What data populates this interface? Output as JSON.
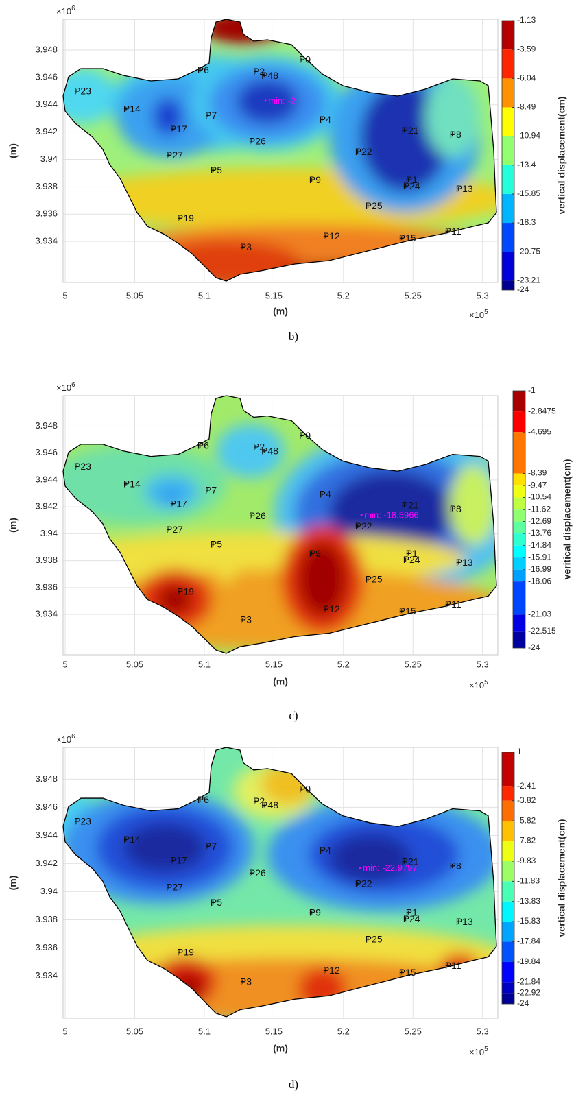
{
  "chart_data": [
    {
      "type": "contour",
      "caption": "b)",
      "xlabel": "(m)",
      "ylabel": "(m)",
      "x_exponent_text": {
        "base": "×10",
        "power": "5"
      },
      "y_exponent_text": {
        "base": "×10",
        "power": "6"
      },
      "xlim": [
        499850,
        531100
      ],
      "xticks": [
        {
          "value": 500000,
          "label": "5"
        },
        {
          "value": 505000,
          "label": "5.05"
        },
        {
          "value": 510000,
          "label": "5.1"
        },
        {
          "value": 515000,
          "label": "5.15"
        },
        {
          "value": 520000,
          "label": "5.2"
        },
        {
          "value": 525000,
          "label": "5.25"
        },
        {
          "value": 530000,
          "label": "5.3"
        }
      ],
      "ylim": [
        3931000,
        3950260
      ],
      "yticks": [
        {
          "value": 3934000,
          "label": "3.934"
        },
        {
          "value": 3936000,
          "label": "3.936"
        },
        {
          "value": 3938000,
          "label": "3.938"
        },
        {
          "value": 3940000,
          "label": "3.94"
        },
        {
          "value": 3942000,
          "label": "3.942"
        },
        {
          "value": 3944000,
          "label": "3.944"
        },
        {
          "value": 3946000,
          "label": "3.946"
        },
        {
          "value": 3948000,
          "label": "3.948"
        }
      ],
      "grid": true,
      "colorbar": {
        "label": "vertical displacement(cm)",
        "lim": [
          -24,
          -1.13
        ],
        "colormap": "jet",
        "ticks": [
          -1.13,
          -3.59,
          -6.04,
          -8.49,
          -10.94,
          -13.4,
          -15.85,
          -18.3,
          -20.75,
          -23.21,
          -24
        ]
      },
      "points": {
        "labels": [
          "P0",
          "P6",
          "P2",
          "P48",
          "P23",
          "P14",
          "P17",
          "P7",
          "P26",
          "P4",
          "P21",
          "P8",
          "P22",
          "P27",
          "P5",
          "P9",
          "P1",
          "P24",
          "P13",
          "P25",
          "P19",
          "P11",
          "P12",
          "P15",
          "P3"
        ],
        "x": [
          517000,
          509700,
          513700,
          514300,
          500840,
          504380,
          507730,
          510250,
          513400,
          518470,
          524380,
          527830,
          521030,
          507440,
          510640,
          517730,
          524680,
          524480,
          528280,
          521770,
          508230,
          527490,
          518720,
          524190,
          512760
        ],
        "y": [
          3947300,
          3946540,
          3946440,
          3946140,
          3945000,
          3943700,
          3942230,
          3943230,
          3941330,
          3942930,
          3942130,
          3941830,
          3940570,
          3940320,
          3939220,
          3938520,
          3938520,
          3938060,
          3937860,
          3936610,
          3935700,
          3934750,
          3934400,
          3934250,
          3933600
        ]
      },
      "min_annotation": {
        "text": "min: -2",
        "x": 514400,
        "y": 3944300,
        "color": "#ff00ff"
      },
      "outline_color": "#000000"
    },
    {
      "type": "contour",
      "caption": "c)",
      "xlabel": "(m)",
      "ylabel": "(m)",
      "x_exponent_text": {
        "base": "×10",
        "power": "5"
      },
      "y_exponent_text": {
        "base": "×10",
        "power": "6"
      },
      "xlim": [
        499850,
        531100
      ],
      "xticks": [
        {
          "value": 500000,
          "label": "5"
        },
        {
          "value": 505000,
          "label": "5.05"
        },
        {
          "value": 510000,
          "label": "5.1"
        },
        {
          "value": 515000,
          "label": "5.15"
        },
        {
          "value": 520000,
          "label": "5.2"
        },
        {
          "value": 525000,
          "label": "5.25"
        },
        {
          "value": 530000,
          "label": "5.3"
        }
      ],
      "ylim": [
        3931000,
        3950260
      ],
      "yticks": [
        {
          "value": 3934000,
          "label": "3.934"
        },
        {
          "value": 3936000,
          "label": "3.936"
        },
        {
          "value": 3938000,
          "label": "3.938"
        },
        {
          "value": 3940000,
          "label": "3.94"
        },
        {
          "value": 3942000,
          "label": "3.942"
        },
        {
          "value": 3944000,
          "label": "3.944"
        },
        {
          "value": 3946000,
          "label": "3.946"
        },
        {
          "value": 3948000,
          "label": "3.948"
        }
      ],
      "grid": true,
      "colorbar": {
        "label": "veritical displacement(cm)",
        "lim": [
          -24,
          -1
        ],
        "colormap": "jet",
        "ticks": [
          -1,
          -2.8475,
          -4.695,
          -8.39,
          -9.47,
          -10.54,
          -11.62,
          -12.69,
          -13.76,
          -14.84,
          -15.91,
          -16.99,
          -18.06,
          -21.03,
          -22.515,
          -24
        ]
      },
      "points": {
        "labels": [
          "P0",
          "P6",
          "P2",
          "P48",
          "P23",
          "P14",
          "P17",
          "P7",
          "P26",
          "P4",
          "P21",
          "P8",
          "P22",
          "P27",
          "P5",
          "P9",
          "P1",
          "P24",
          "P13",
          "P25",
          "P19",
          "P11",
          "P12",
          "P15",
          "P3"
        ],
        "x": [
          517000,
          509700,
          513700,
          514300,
          500840,
          504380,
          507730,
          510250,
          513400,
          518470,
          524380,
          527830,
          521030,
          507440,
          510640,
          517730,
          524680,
          524480,
          528280,
          521770,
          508230,
          527490,
          518720,
          524190,
          512760
        ],
        "y": [
          3947300,
          3946540,
          3946440,
          3946140,
          3945000,
          3943700,
          3942230,
          3943230,
          3941330,
          3942930,
          3942130,
          3941830,
          3940570,
          3940320,
          3939220,
          3938520,
          3938520,
          3938060,
          3937860,
          3936610,
          3935700,
          3934750,
          3934400,
          3934250,
          3933600
        ]
      },
      "min_annotation": {
        "text": "min: -18.5966",
        "x": 521300,
        "y": 3941400,
        "color": "#ff00ff"
      },
      "outline_color": "#000000"
    },
    {
      "type": "contour",
      "caption": "d)",
      "xlabel": "(m)",
      "ylabel": "(m)",
      "x_exponent_text": {
        "base": "×10",
        "power": "5"
      },
      "y_exponent_text": {
        "base": "×10",
        "power": "6"
      },
      "xlim": [
        499850,
        531100
      ],
      "xticks": [
        {
          "value": 500000,
          "label": "5"
        },
        {
          "value": 505000,
          "label": "5.05"
        },
        {
          "value": 510000,
          "label": "5.1"
        },
        {
          "value": 515000,
          "label": "5.15"
        },
        {
          "value": 520000,
          "label": "5.2"
        },
        {
          "value": 525000,
          "label": "5.25"
        },
        {
          "value": 530000,
          "label": "5.3"
        }
      ],
      "ylim": [
        3931000,
        3950260
      ],
      "yticks": [
        {
          "value": 3934000,
          "label": "3.934"
        },
        {
          "value": 3936000,
          "label": "3.936"
        },
        {
          "value": 3938000,
          "label": "3.938"
        },
        {
          "value": 3940000,
          "label": "3.94"
        },
        {
          "value": 3942000,
          "label": "3.942"
        },
        {
          "value": 3944000,
          "label": "3.944"
        },
        {
          "value": 3946000,
          "label": "3.946"
        },
        {
          "value": 3948000,
          "label": "3.948"
        }
      ],
      "grid": true,
      "colorbar": {
        "label": "vertical displacement(cm)",
        "lim": [
          -24,
          1
        ],
        "colormap": "jet",
        "ticks": [
          1,
          -2.41,
          -3.82,
          -5.82,
          -7.82,
          -9.83,
          -11.83,
          -13.83,
          -15.83,
          -17.84,
          -19.84,
          -21.84,
          -22.92,
          -24
        ]
      },
      "points": {
        "labels": [
          "P0",
          "P6",
          "P2",
          "P48",
          "P23",
          "P14",
          "P17",
          "P7",
          "P26",
          "P4",
          "P21",
          "P8",
          "P22",
          "P27",
          "P5",
          "P9",
          "P1",
          "P24",
          "P13",
          "P25",
          "P19",
          "P11",
          "P12",
          "P15",
          "P3"
        ],
        "x": [
          517000,
          509700,
          513700,
          514300,
          500840,
          504380,
          507730,
          510250,
          513400,
          518470,
          524380,
          527830,
          521030,
          507440,
          510640,
          517730,
          524680,
          524480,
          528280,
          521770,
          508230,
          527490,
          518720,
          524190,
          512760
        ],
        "y": [
          3947300,
          3946540,
          3946440,
          3946140,
          3945000,
          3943700,
          3942230,
          3943230,
          3941330,
          3942930,
          3942130,
          3941830,
          3940570,
          3940320,
          3939220,
          3938520,
          3938520,
          3938060,
          3937860,
          3936610,
          3935700,
          3934750,
          3934400,
          3934250,
          3933600
        ]
      },
      "min_annotation": {
        "text": "min: -22.9797",
        "x": 521200,
        "y": 3941700,
        "color": "#ff00ff"
      },
      "outline_color": "#000000"
    }
  ]
}
